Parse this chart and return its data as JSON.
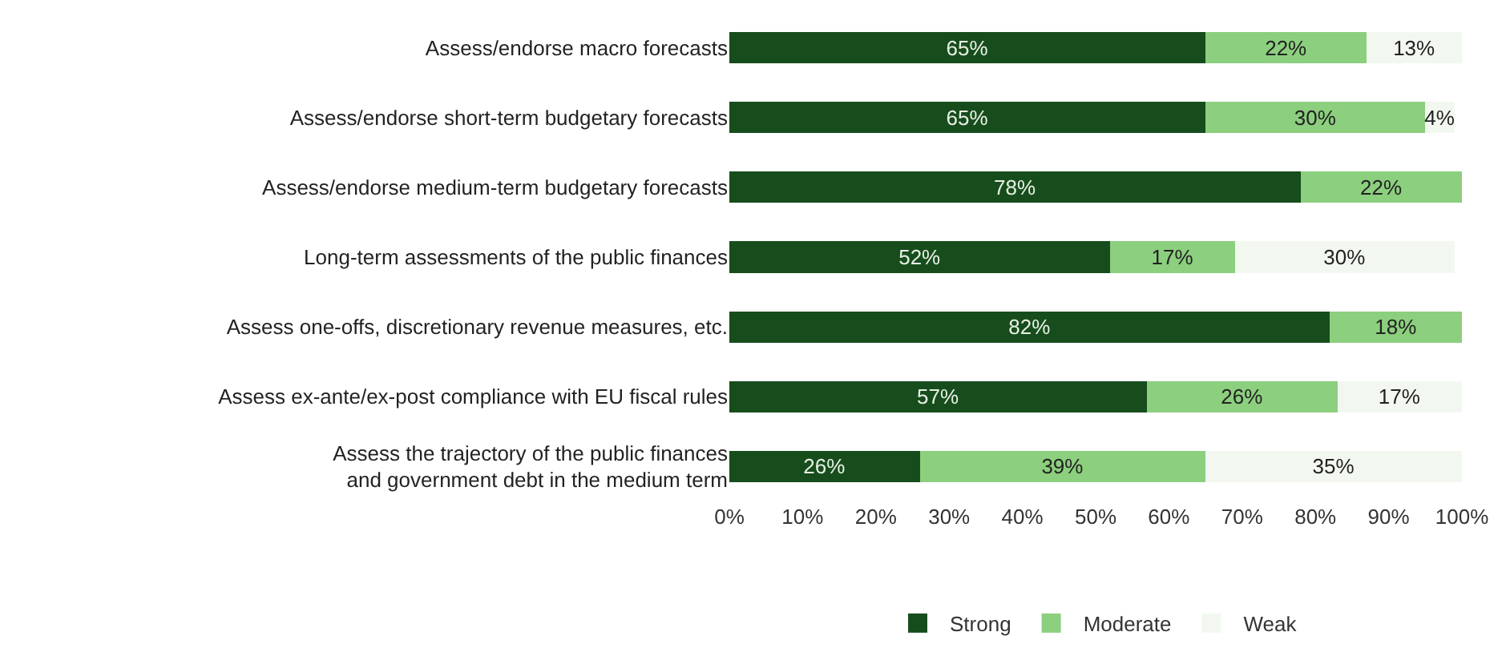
{
  "chart_data": {
    "type": "bar",
    "orientation": "horizontal",
    "stacked": true,
    "legend": "bottom",
    "grid": false,
    "categories": [
      "Assess/endorse macro forecasts",
      "Assess/endorse short-term budgetary forecasts",
      "Assess/endorse medium-term budgetary forecasts",
      "Long-term assessments of the public finances",
      "Assess one-offs, discretionary revenue measures, etc.",
      "Assess ex-ante/ex-post compliance with EU fiscal rules",
      "Assess the trajectory of the public finances and government debt in the medium term"
    ],
    "series": [
      {
        "name": "Strong",
        "color": "#174d1c",
        "values": [
          65,
          65,
          78,
          52,
          82,
          57,
          26
        ],
        "value_labels": [
          "65%",
          "65%",
          "78%",
          "52%",
          "82%",
          "57%",
          "26%"
        ]
      },
      {
        "name": "Moderate",
        "color": "#8ccf7e",
        "values": [
          22,
          30,
          22,
          17,
          18,
          26,
          39
        ],
        "value_labels": [
          "22%",
          "30%",
          "22%",
          "17%",
          "18%",
          "26%",
          "39%"
        ]
      },
      {
        "name": "Weak",
        "color": "#f2f8f0",
        "values": [
          13,
          4,
          null,
          30,
          null,
          17,
          35
        ],
        "value_labels": [
          "13%",
          "4%",
          null,
          "30%",
          null,
          "17%",
          "35%"
        ]
      }
    ],
    "xlim": [
      0,
      100
    ],
    "xticks": [
      {
        "value": 0,
        "label": "0%"
      },
      {
        "value": 10,
        "label": "10%"
      },
      {
        "value": 20,
        "label": "20%"
      },
      {
        "value": 30,
        "label": "30%"
      },
      {
        "value": 40,
        "label": "40%"
      },
      {
        "value": 50,
        "label": "50%"
      },
      {
        "value": 60,
        "label": "60%"
      },
      {
        "value": 70,
        "label": "70%"
      },
      {
        "value": 80,
        "label": "80%"
      },
      {
        "value": 90,
        "label": "90%"
      },
      {
        "value": 100,
        "label": "100%"
      }
    ]
  }
}
